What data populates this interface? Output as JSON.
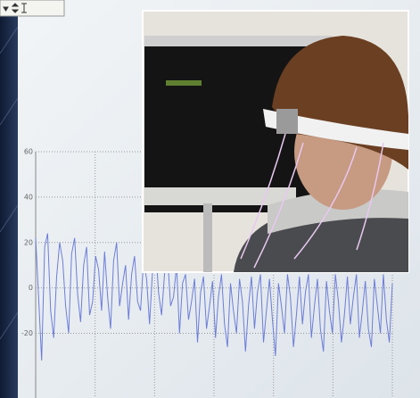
{
  "chart_data": {
    "type": "line",
    "color": "#6d7dd8",
    "grid": true,
    "ylim": [
      -48.5,
      60
    ],
    "yticks": [
      60,
      40,
      20,
      0,
      -20
    ],
    "values": [
      22,
      -5,
      -32,
      18,
      24,
      -10,
      -22,
      5,
      20,
      12,
      -8,
      -20,
      15,
      22,
      -3,
      -15,
      10,
      18,
      -12,
      -6,
      14,
      8,
      -10,
      16,
      -4,
      -18,
      12,
      20,
      -8,
      2,
      10,
      -14,
      6,
      14,
      -6,
      -10,
      12,
      4,
      -16,
      8,
      18,
      -2,
      -12,
      6,
      14,
      -8,
      -4,
      10,
      -20,
      2,
      6,
      -14,
      -6,
      4,
      -24,
      -2,
      5,
      -18,
      -8,
      3,
      -22,
      -4,
      6,
      -16,
      -26,
      2,
      -10,
      -20,
      4,
      -6,
      -28,
      -8,
      5,
      -18,
      -2,
      6,
      -24,
      -10,
      4,
      -14,
      -30,
      2,
      -8,
      -20,
      6,
      -4,
      -26,
      -12,
      5,
      -16,
      -2,
      6,
      -22,
      -8,
      4,
      -18,
      -28,
      3,
      -10,
      -20,
      6,
      -6,
      -24,
      -12,
      5,
      -16,
      -4,
      6,
      -22,
      -10,
      3,
      -18,
      -26,
      4,
      -8,
      -20,
      6,
      -14,
      -24,
      2
    ]
  }
}
